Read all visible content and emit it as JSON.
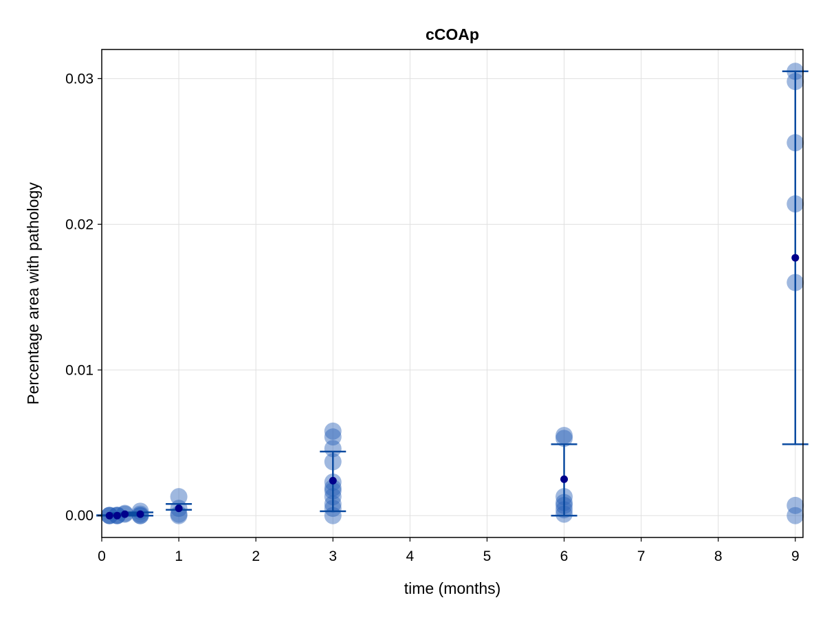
{
  "chart_data": {
    "type": "scatter",
    "title": "cCOAp",
    "xlabel": "time (months)",
    "ylabel": "Percentage area with pathology",
    "xlim": [
      0,
      9.1
    ],
    "ylim": [
      -0.0015,
      0.032
    ],
    "xticks": [
      0,
      1,
      2,
      3,
      4,
      5,
      6,
      7,
      8,
      9
    ],
    "xtick_labels": [
      "0",
      "1",
      "2",
      "3",
      "4",
      "5",
      "6",
      "7",
      "8",
      "9"
    ],
    "yticks": [
      0.0,
      0.01,
      0.02,
      0.03
    ],
    "ytick_labels": [
      "0.00",
      "0.01",
      "0.02",
      "0.03"
    ],
    "grid": true,
    "legend": "none",
    "colors": {
      "points": "#2a62b8",
      "mean": "#00008b",
      "errorbar": "#0a4aa0",
      "grid": "#e0e0e0",
      "axis": "#000000"
    },
    "points": [
      {
        "x": 0.1,
        "y": 0.0
      },
      {
        "x": 0.1,
        "y": 0.0
      },
      {
        "x": 0.1,
        "y": 2e-05
      },
      {
        "x": 0.2,
        "y": 0.0
      },
      {
        "x": 0.2,
        "y": 3e-05
      },
      {
        "x": 0.2,
        "y": 0.0
      },
      {
        "x": 0.3,
        "y": 0.0001
      },
      {
        "x": 0.3,
        "y": 0.00015
      },
      {
        "x": 0.5,
        "y": 0.0
      },
      {
        "x": 0.5,
        "y": 0.0001
      },
      {
        "x": 0.5,
        "y": 0.0003
      },
      {
        "x": 0.5,
        "y": 0.0
      },
      {
        "x": 1,
        "y": 0.0
      },
      {
        "x": 1,
        "y": 0.0001
      },
      {
        "x": 1,
        "y": 0.0005
      },
      {
        "x": 1,
        "y": 0.0013
      },
      {
        "x": 3,
        "y": 0.0
      },
      {
        "x": 3,
        "y": 0.0005
      },
      {
        "x": 3,
        "y": 0.0008
      },
      {
        "x": 3,
        "y": 0.0013
      },
      {
        "x": 3,
        "y": 0.0017
      },
      {
        "x": 3,
        "y": 0.0019
      },
      {
        "x": 3,
        "y": 0.0023
      },
      {
        "x": 3,
        "y": 0.0037
      },
      {
        "x": 3,
        "y": 0.0046
      },
      {
        "x": 3,
        "y": 0.0054
      },
      {
        "x": 3,
        "y": 0.0058
      },
      {
        "x": 6,
        "y": 0.0001
      },
      {
        "x": 6,
        "y": 0.0004
      },
      {
        "x": 6,
        "y": 0.0007
      },
      {
        "x": 6,
        "y": 0.0009
      },
      {
        "x": 6,
        "y": 0.0013
      },
      {
        "x": 6,
        "y": 0.0053
      },
      {
        "x": 6,
        "y": 0.0055
      },
      {
        "x": 9,
        "y": 0.0
      },
      {
        "x": 9,
        "y": 0.0007
      },
      {
        "x": 9,
        "y": 0.016
      },
      {
        "x": 9,
        "y": 0.0214
      },
      {
        "x": 9,
        "y": 0.0256
      },
      {
        "x": 9,
        "y": 0.0298
      },
      {
        "x": 9,
        "y": 0.0305
      }
    ],
    "means": [
      {
        "x": 0.1,
        "y": 0.0
      },
      {
        "x": 0.2,
        "y": 0.0
      },
      {
        "x": 0.3,
        "y": 0.0001
      },
      {
        "x": 0.5,
        "y": 0.0001
      },
      {
        "x": 1,
        "y": 0.0005
      },
      {
        "x": 3,
        "y": 0.0024
      },
      {
        "x": 6,
        "y": 0.0025
      },
      {
        "x": 9,
        "y": 0.0177
      }
    ],
    "errorbars": [
      {
        "x": 0.1,
        "low": 0.0,
        "high": 3e-05
      },
      {
        "x": 0.2,
        "low": 0.0,
        "high": 3e-05
      },
      {
        "x": 0.3,
        "low": 8e-05,
        "high": 0.00016
      },
      {
        "x": 0.5,
        "low": 0.0,
        "high": 0.00022
      },
      {
        "x": 1,
        "low": 0.0004,
        "high": 0.0008
      },
      {
        "x": 3,
        "low": 0.0003,
        "high": 0.0044
      },
      {
        "x": 6,
        "low": 0.0,
        "high": 0.0049
      },
      {
        "x": 9,
        "low": 0.0049,
        "high": 0.0305
      }
    ]
  }
}
